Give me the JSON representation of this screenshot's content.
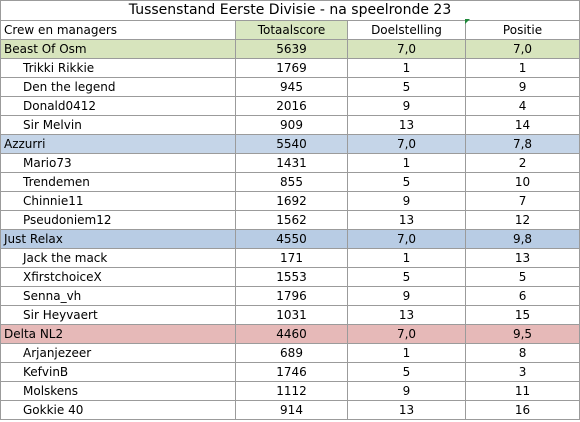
{
  "title": "Tussenstand Eerste Divisie - na speelronde 23",
  "columns": {
    "name": "Crew en managers",
    "total": "Totaalscore",
    "goal": "Doelstelling",
    "position": "Positie"
  },
  "groups": [
    {
      "crew": "Beast Of Osm",
      "total": "5639",
      "goal": "7,0",
      "position": "7,0",
      "color": "#d7e4bd",
      "managers": [
        {
          "name": "Trikki Rikkie",
          "total": "1769",
          "goal": "1",
          "position": "1"
        },
        {
          "name": "Den the legend",
          "total": "945",
          "goal": "5",
          "position": "9"
        },
        {
          "name": "Donald0412",
          "total": "2016",
          "goal": "9",
          "position": "4"
        },
        {
          "name": "Sir Melvin",
          "total": "909",
          "goal": "13",
          "position": "14"
        }
      ]
    },
    {
      "crew": "Azzurri",
      "total": "5540",
      "goal": "7,0",
      "position": "7,8",
      "color": "#c5d5e8",
      "managers": [
        {
          "name": "Mario73",
          "total": "1431",
          "goal": "1",
          "position": "2"
        },
        {
          "name": "Trendemen",
          "total": "855",
          "goal": "5",
          "position": "10"
        },
        {
          "name": "Chinnie11",
          "total": "1692",
          "goal": "9",
          "position": "7"
        },
        {
          "name": "Pseudoniem12",
          "total": "1562",
          "goal": "13",
          "position": "12"
        }
      ]
    },
    {
      "crew": "Just Relax",
      "total": "4550",
      "goal": "7,0",
      "position": "9,8",
      "color": "#b8cce4",
      "managers": [
        {
          "name": "Jack the mack",
          "total": "171",
          "goal": "1",
          "position": "13"
        },
        {
          "name": "XfirstchoiceX",
          "total": "1553",
          "goal": "5",
          "position": "5"
        },
        {
          "name": "Senna_vh",
          "total": "1796",
          "goal": "9",
          "position": "6"
        },
        {
          "name": "Sir Heyvaert",
          "total": "1031",
          "goal": "13",
          "position": "15"
        }
      ]
    },
    {
      "crew": "Delta NL2",
      "total": "4460",
      "goal": "7,0",
      "position": "9,5",
      "color": "#e6b9b8",
      "managers": [
        {
          "name": "Arjanjezeer",
          "total": "689",
          "goal": "1",
          "position": "8"
        },
        {
          "name": "KefvinB",
          "total": "1746",
          "goal": "5",
          "position": "3"
        },
        {
          "name": "Molskens",
          "total": "1112",
          "goal": "9",
          "position": "11"
        },
        {
          "name": "Gokkie 40",
          "total": "914",
          "goal": "13",
          "position": "16"
        }
      ]
    }
  ]
}
